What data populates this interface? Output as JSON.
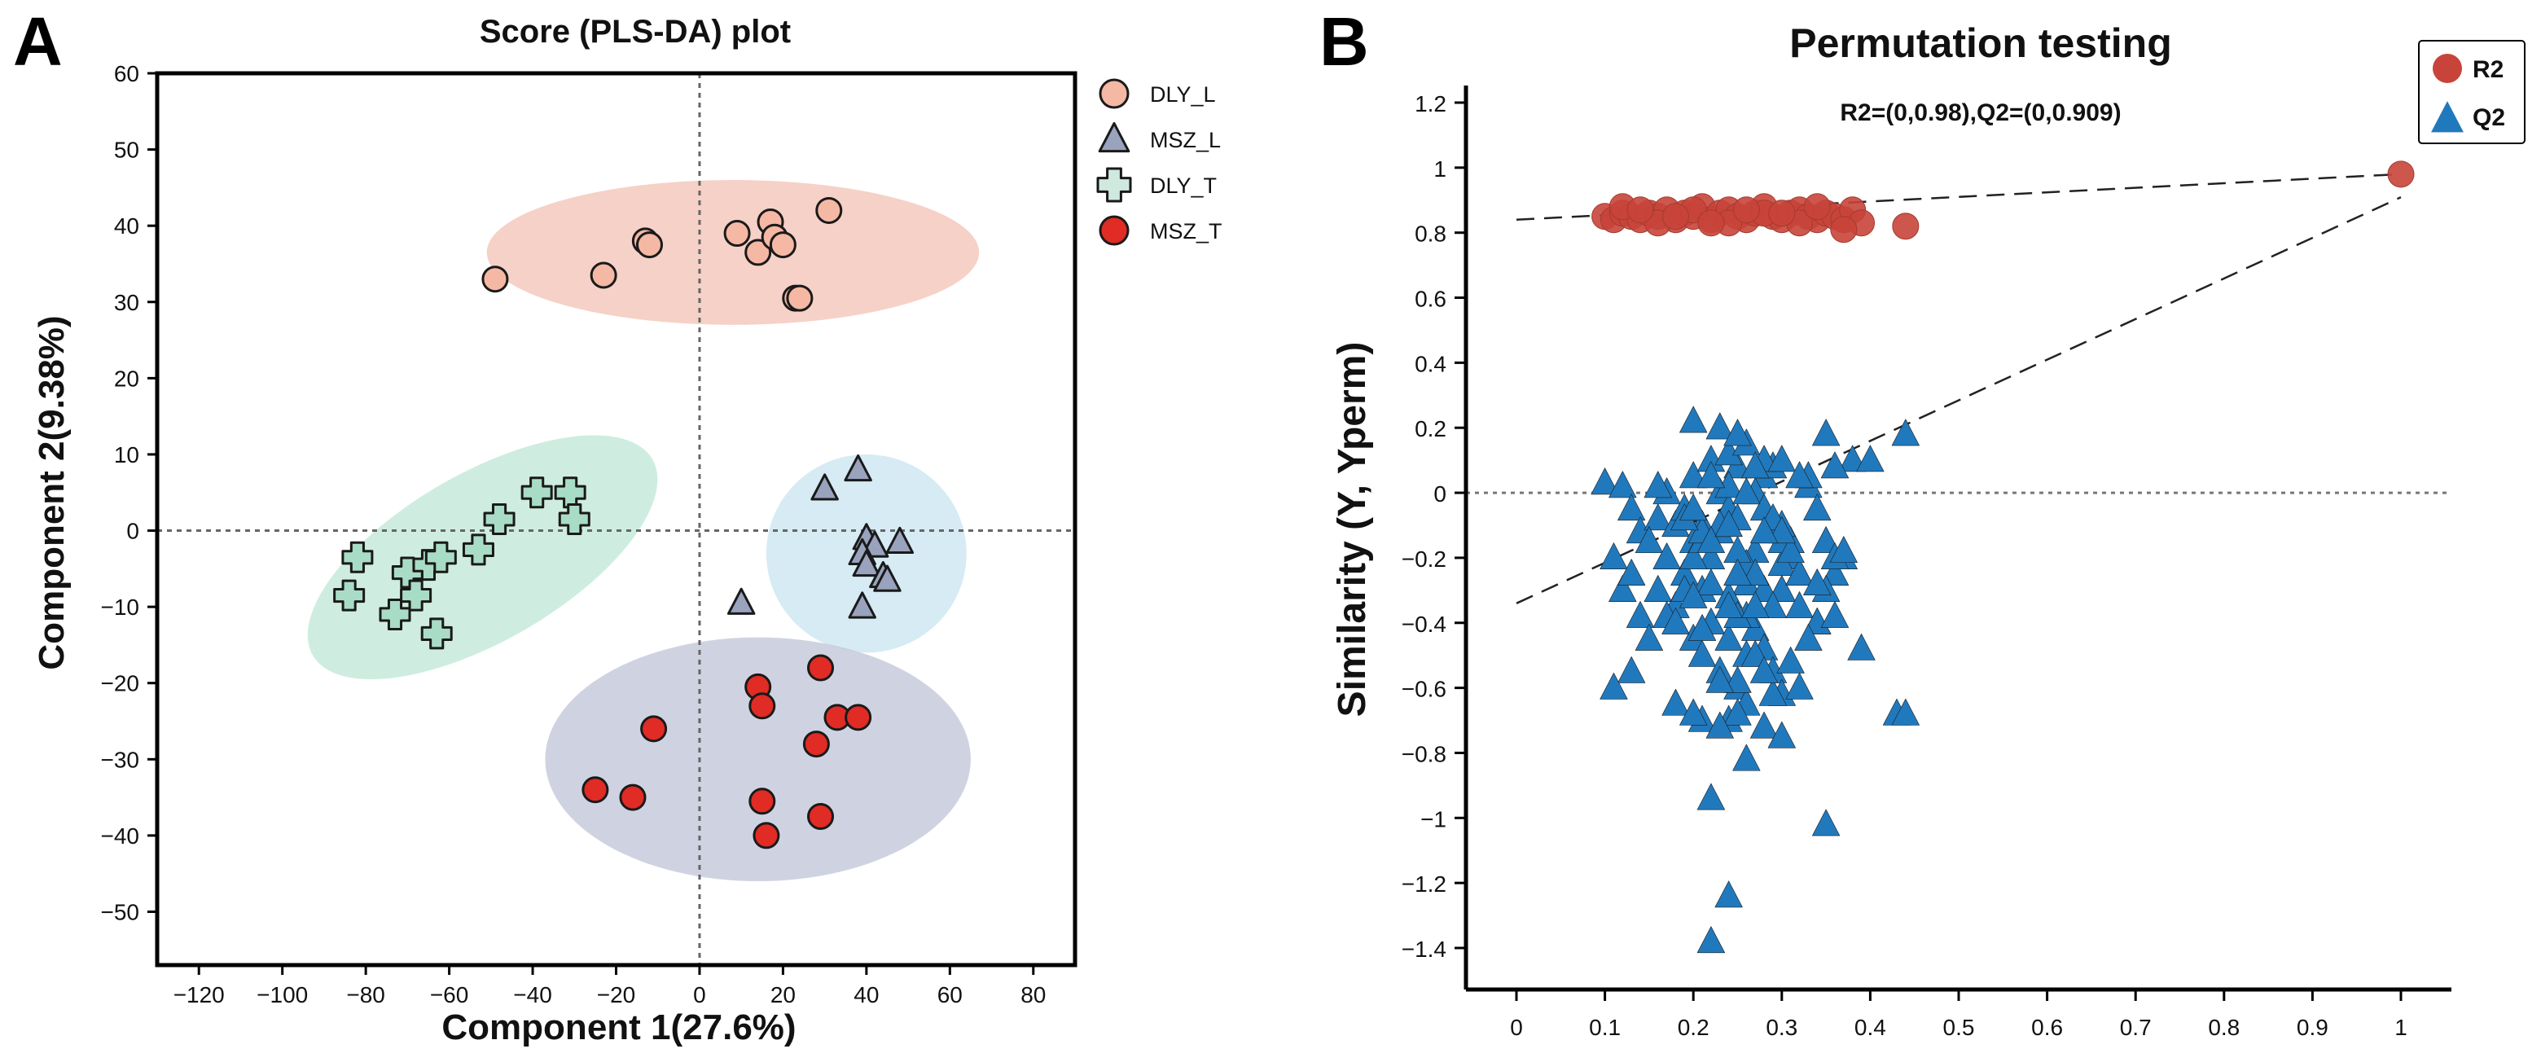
{
  "panel_labels": [
    "A",
    "B"
  ],
  "chart_data": [
    {
      "type": "scatter",
      "panel": "A",
      "title": "Score (PLS-DA) plot",
      "xlabel": "Component 1(27.6%)",
      "ylabel": "Component 2(9.38%)",
      "xlim": [
        -130,
        90
      ],
      "ylim": [
        -57,
        60
      ],
      "xticks": [
        -120,
        -100,
        -80,
        -60,
        -40,
        -20,
        0,
        20,
        40,
        60,
        80
      ],
      "yticks": [
        -50,
        -40,
        -30,
        -20,
        -10,
        0,
        10,
        20,
        30,
        40,
        50,
        60
      ],
      "xtick_labels": [
        "−120",
        "−100",
        "−80",
        "−60",
        "−40",
        "−20",
        "0",
        "20",
        "40",
        "60",
        "80"
      ],
      "ytick_labels": [
        "−50",
        "−40",
        "−30",
        "−20",
        "−10",
        "0",
        "10",
        "20",
        "30",
        "40",
        "50",
        "60"
      ],
      "reference_lines": {
        "x": 0,
        "y": 0,
        "style": "dotted"
      },
      "legend_position": "outside-right",
      "series": [
        {
          "name": "DLY_L",
          "marker": "circle",
          "color": "#f5b8a4",
          "ellipse": {
            "cx": 8,
            "cy": 36.5,
            "rx": 59,
            "ry": 9.5,
            "angle": 0,
            "color": "#f5c9bd"
          },
          "x": [
            -49,
            -23,
            -13,
            -12,
            9,
            14,
            17,
            18,
            20,
            23,
            24,
            31
          ],
          "y": [
            33,
            33.5,
            38,
            37.5,
            39,
            36.5,
            40.5,
            38.5,
            37.5,
            30.5,
            30.5,
            42
          ]
        },
        {
          "name": "MSZ_L",
          "marker": "triangle",
          "color": "#9aa3bd",
          "ellipse": {
            "cx": 40,
            "cy": -3,
            "rx": 24,
            "ry": 13,
            "angle": 0,
            "color": "#cfe7f2"
          },
          "x": [
            10,
            30,
            38,
            40,
            42,
            39,
            48,
            40,
            44,
            45,
            39
          ],
          "y": [
            -9.5,
            5.5,
            8,
            -1,
            -2,
            -3,
            -1.5,
            -4.5,
            -6,
            -6.5,
            -10
          ]
        },
        {
          "name": "DLY_T",
          "marker": "cross",
          "color": "#a9dcc6",
          "ellipse": {
            "cx": -52,
            "cy": -3.5,
            "rx": 47,
            "ry": 11,
            "angle": 30,
            "color": "#c5eadb"
          },
          "x": [
            -82,
            -84,
            -70,
            -65,
            -68,
            -73,
            -63,
            -62,
            -53,
            -48,
            -39,
            -31,
            -30
          ],
          "y": [
            -3.5,
            -8.5,
            -5.5,
            -4.5,
            -8.5,
            -11,
            -13.5,
            -3.5,
            -2.5,
            1.5,
            5,
            5,
            1.5
          ],
          "legend_color": "#cfe9df"
        },
        {
          "name": "MSZ_T",
          "marker": "circle",
          "color": "#e12b25",
          "ellipse": {
            "cx": 14,
            "cy": -30,
            "rx": 51,
            "ry": 16,
            "angle": 0,
            "color": "#c7cbdc"
          },
          "x": [
            -25,
            -16,
            -11,
            14,
            15,
            15,
            16,
            28,
            29,
            33,
            38,
            29
          ],
          "y": [
            -34,
            -35,
            -26,
            -20.5,
            -23,
            -35.5,
            -40,
            -28,
            -18,
            -24.5,
            -24.5,
            -37.5
          ]
        }
      ]
    },
    {
      "type": "scatter",
      "panel": "B",
      "title": "Permutation testing",
      "subtitle": "R2=(0,0.98),Q2=(0,0.909)",
      "xlabel": "",
      "ylabel": "Similarity (Y, Yperm)",
      "xlim": [
        -0.05,
        1.05
      ],
      "ylim": [
        -1.5,
        1.2
      ],
      "xticks": [
        0,
        0.1,
        0.2,
        0.3,
        0.4,
        0.5,
        0.6,
        0.7,
        0.8,
        0.9,
        1
      ],
      "yticks": [
        -1.4,
        -1.2,
        -1,
        -0.8,
        -0.6,
        -0.4,
        -0.2,
        0,
        0.2,
        0.4,
        0.6,
        0.8,
        1,
        1.2
      ],
      "xtick_labels": [
        "0",
        "0.1",
        "0.2",
        "0.3",
        "0.4",
        "0.5",
        "0.6",
        "0.7",
        "0.8",
        "0.9",
        "1"
      ],
      "ytick_labels": [
        "−1.4",
        "−1.2",
        "−1",
        "−0.8",
        "−0.6",
        "−0.4",
        "−0.2",
        "0",
        "0.2",
        "0.4",
        "0.6",
        "0.8",
        "1",
        "1.2"
      ],
      "reference_lines": {
        "y": 0,
        "style": "dotted"
      },
      "regression_lines": [
        {
          "series": "R2",
          "x": [
            0,
            1
          ],
          "y": [
            0.84,
            0.98
          ]
        },
        {
          "series": "Q2",
          "x": [
            0,
            1
          ],
          "y": [
            -0.34,
            0.909
          ]
        }
      ],
      "legend_position": "top-right",
      "series": [
        {
          "name": "R2",
          "marker": "circle",
          "color": "#c8443a",
          "x": [
            0.1,
            0.11,
            0.12,
            0.13,
            0.14,
            0.15,
            0.16,
            0.17,
            0.18,
            0.19,
            0.2,
            0.21,
            0.22,
            0.23,
            0.24,
            0.25,
            0.26,
            0.27,
            0.28,
            0.29,
            0.3,
            0.31,
            0.32,
            0.33,
            0.34,
            0.35,
            0.36,
            0.37,
            0.12,
            0.16,
            0.2,
            0.24,
            0.28,
            0.32,
            0.14,
            0.18,
            0.22,
            0.26,
            0.3,
            0.34,
            0.38,
            0.39,
            0.44,
            0.37,
            1.0
          ],
          "y": [
            0.85,
            0.84,
            0.86,
            0.85,
            0.84,
            0.86,
            0.85,
            0.87,
            0.84,
            0.86,
            0.85,
            0.88,
            0.84,
            0.86,
            0.87,
            0.85,
            0.84,
            0.86,
            0.88,
            0.85,
            0.84,
            0.86,
            0.87,
            0.85,
            0.84,
            0.86,
            0.85,
            0.84,
            0.88,
            0.83,
            0.87,
            0.83,
            0.86,
            0.83,
            0.87,
            0.85,
            0.83,
            0.87,
            0.86,
            0.88,
            0.87,
            0.83,
            0.82,
            0.81,
            0.98
          ]
        },
        {
          "name": "Q2",
          "marker": "triangle",
          "color": "#2179bd",
          "x": [
            0.1,
            0.12,
            0.13,
            0.11,
            0.14,
            0.12,
            0.13,
            0.16,
            0.15,
            0.17,
            0.14,
            0.18,
            0.16,
            0.19,
            0.17,
            0.2,
            0.18,
            0.21,
            0.19,
            0.22,
            0.2,
            0.23,
            0.21,
            0.24,
            0.22,
            0.25,
            0.23,
            0.26,
            0.24,
            0.27,
            0.25,
            0.28,
            0.26,
            0.29,
            0.27,
            0.3,
            0.28,
            0.31,
            0.29,
            0.32,
            0.3,
            0.33,
            0.31,
            0.34,
            0.32,
            0.35,
            0.33,
            0.36,
            0.34,
            0.37,
            0.35,
            0.38,
            0.2,
            0.21,
            0.22,
            0.23,
            0.24,
            0.25,
            0.26,
            0.27,
            0.28,
            0.29,
            0.3,
            0.31,
            0.2,
            0.22,
            0.24,
            0.26,
            0.28,
            0.3,
            0.21,
            0.23,
            0.25,
            0.27,
            0.29,
            0.22,
            0.24,
            0.26,
            0.28,
            0.23,
            0.25,
            0.27,
            0.3,
            0.32,
            0.19,
            0.21,
            0.17,
            0.15,
            0.13,
            0.11,
            0.18,
            0.24,
            0.26,
            0.28,
            0.3,
            0.32,
            0.34,
            0.36,
            0.4,
            0.44,
            0.43,
            0.35,
            0.36,
            0.37,
            0.39,
            0.29,
            0.25,
            0.21,
            0.23,
            0.2,
            0.26,
            0.22,
            0.27,
            0.28,
            0.25,
            0.24,
            0.21,
            0.19,
            0.36,
            0.25,
            0.23,
            0.35,
            0.44,
            0.3,
            0.32,
            0.33,
            0.2,
            0.16,
            0.2,
            0.22,
            0.25,
            0.27,
            0.29,
            0.31,
            0.18,
            0.24,
            0.26,
            0.3,
            0.34,
            0.2,
            0.28,
            0.24,
            0.22
          ],
          "y": [
            0.03,
            0.02,
            -0.05,
            -0.2,
            -0.12,
            -0.3,
            -0.25,
            -0.08,
            -0.15,
            0.0,
            -0.38,
            -0.1,
            -0.3,
            -0.05,
            -0.2,
            0.05,
            -0.35,
            -0.1,
            -0.25,
            0.1,
            -0.15,
            0.0,
            -0.3,
            -0.05,
            -0.2,
            0.08,
            -0.12,
            -0.28,
            0.02,
            -0.18,
            -0.08,
            0.05,
            -0.22,
            -0.12,
            0.0,
            -0.3,
            -0.05,
            -0.15,
            0.08,
            -0.25,
            -0.1,
            0.02,
            -0.2,
            -0.05,
            -0.35,
            -0.15,
            0.05,
            -0.25,
            -0.4,
            -0.2,
            -0.3,
            0.1,
            -0.45,
            -0.5,
            -0.4,
            -0.55,
            -0.45,
            -0.6,
            -0.5,
            -0.42,
            -0.48,
            -0.55,
            -0.62,
            -0.52,
            -0.2,
            -0.28,
            -0.32,
            -0.38,
            -0.3,
            -0.22,
            -0.15,
            -0.1,
            -0.18,
            -0.25,
            -0.35,
            0.05,
            0.12,
            0.15,
            0.1,
            0.2,
            0.18,
            0.08,
            0.1,
            0.05,
            -0.3,
            -0.42,
            -0.38,
            -0.45,
            -0.55,
            -0.6,
            -0.65,
            -0.7,
            -0.65,
            -0.72,
            -0.75,
            -0.6,
            -0.4,
            -0.2,
            0.1,
            0.18,
            -0.68,
            0.18,
            0.08,
            -0.18,
            -0.48,
            -0.62,
            -0.68,
            -0.7,
            -0.72,
            -0.68,
            -0.82,
            -0.94,
            -0.5,
            -0.55,
            -0.38,
            -0.35,
            -0.12,
            -0.08,
            -0.38,
            -0.58,
            -0.58,
            -1.02,
            -0.68,
            -0.15,
            -0.25,
            -0.45,
            0.22,
            0.02,
            -0.05,
            -0.15,
            -0.25,
            -0.35,
            -0.08,
            -0.18,
            -0.4,
            -0.1,
            0.0,
            -0.12,
            -0.28,
            -0.32,
            -0.12,
            -1.24,
            -1.38
          ]
        }
      ]
    }
  ]
}
